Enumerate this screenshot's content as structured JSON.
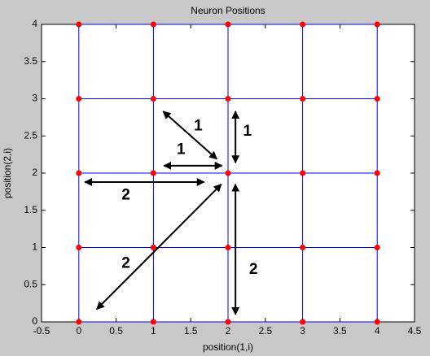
{
  "chart_data": {
    "type": "scatter",
    "title": "Neuron Positions",
    "x_label": "position(1,i)",
    "y_label": "position(2,i)",
    "xlim": [
      -0.5,
      4.5
    ],
    "ylim": [
      0,
      4
    ],
    "xticks": [
      -0.5,
      0,
      0.5,
      1,
      1.5,
      2,
      2.5,
      3,
      3.5,
      4,
      4.5
    ],
    "yticks": [
      0,
      0.5,
      1,
      1.5,
      2,
      2.5,
      3,
      3.5,
      4
    ],
    "points": {
      "color": "#ff0000",
      "line_color": "#0000ff",
      "x": [
        0,
        1,
        2,
        3,
        4,
        0,
        1,
        2,
        3,
        4,
        0,
        1,
        2,
        3,
        4,
        0,
        1,
        2,
        3,
        4,
        0,
        1,
        2,
        3,
        4
      ],
      "y": [
        0,
        0,
        0,
        0,
        0,
        1,
        1,
        1,
        1,
        1,
        2,
        2,
        2,
        2,
        2,
        3,
        3,
        3,
        3,
        3,
        4,
        4,
        4,
        4,
        4
      ]
    },
    "annotations": [
      {
        "text": "1",
        "from": [
          1.13,
          2.83
        ],
        "to": [
          1.85,
          2.19
        ],
        "at": [
          1.6,
          2.63
        ]
      },
      {
        "text": "1",
        "from": [
          2.1,
          2.83
        ],
        "to": [
          2.1,
          2.14
        ],
        "at": [
          2.26,
          2.56
        ]
      },
      {
        "text": "1",
        "from": [
          1.14,
          2.1
        ],
        "to": [
          1.92,
          2.1
        ],
        "at": [
          1.37,
          2.31
        ]
      },
      {
        "text": "2",
        "from": [
          0.08,
          1.88
        ],
        "to": [
          1.68,
          1.88
        ],
        "at": [
          0.63,
          1.7
        ]
      },
      {
        "text": "2",
        "from": [
          1.91,
          1.85
        ],
        "to": [
          0.24,
          0.17
        ],
        "at": [
          0.63,
          0.78
        ]
      },
      {
        "text": "2",
        "from": [
          2.1,
          1.85
        ],
        "to": [
          2.1,
          0.1
        ],
        "at": [
          2.34,
          0.7
        ]
      }
    ]
  }
}
